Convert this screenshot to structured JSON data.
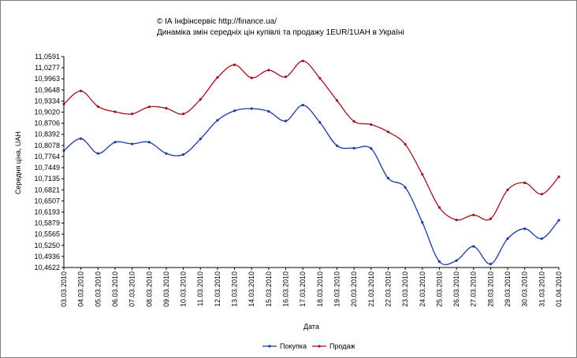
{
  "chart_data": {
    "type": "line",
    "title": "© ІА Інфінсервіс http://finance.ua/",
    "subtitle": "Динаміка змін середніх цін купівлі та продажу 1EUR/1UAH в Україні",
    "xlabel": "Дата",
    "ylabel": "Середня ціна, UAH",
    "ylim": [
      10.4622,
      11.0591
    ],
    "y_ticks": [
      "11,0591",
      "11,0277",
      "10,9963",
      "10,9648",
      "10,9334",
      "10,9020",
      "10,8706",
      "10,8392",
      "10,8078",
      "10,7764",
      "10,7449",
      "10,7135",
      "10,6821",
      "10,6507",
      "10,6193",
      "10,5879",
      "10,5565",
      "10,5250",
      "10,4936",
      "10,4622"
    ],
    "categories": [
      "03.03.2010",
      "04.03.2010",
      "05.03.2010",
      "06.03.2010",
      "07.03.2010",
      "08.03.2010",
      "09.03.2010",
      "10.03.2010",
      "11.03.2010",
      "12.03.2010",
      "13.03.2010",
      "14.03.2010",
      "15.03.2010",
      "16.03.2010",
      "17.03.2010",
      "18.03.2010",
      "19.03.2010",
      "20.03.2010",
      "21.03.2010",
      "22.03.2010",
      "23.03.2010",
      "24.03.2010",
      "25.03.2010",
      "26.03.2010",
      "27.03.2010",
      "28.03.2010",
      "29.03.2010",
      "30.03.2010",
      "31.03.2010",
      "01.04.2010"
    ],
    "series": [
      {
        "name": "Покупка",
        "color": "#1a3a9a",
        "values": [
          10.793,
          10.827,
          10.785,
          10.817,
          10.812,
          10.817,
          10.785,
          10.782,
          10.826,
          10.879,
          10.906,
          10.912,
          10.904,
          10.877,
          10.922,
          10.873,
          10.807,
          10.8,
          10.799,
          10.715,
          10.689,
          10.59,
          10.479,
          10.482,
          10.522,
          10.472,
          10.544,
          10.572,
          10.544,
          10.596
        ]
      },
      {
        "name": "Продаж",
        "color": "#a01020",
        "values": [
          10.925,
          10.962,
          10.918,
          10.903,
          10.897,
          10.917,
          10.913,
          10.897,
          10.938,
          11.0,
          11.036,
          10.999,
          11.021,
          11.002,
          11.047,
          10.998,
          10.935,
          10.876,
          10.867,
          10.846,
          10.811,
          10.726,
          10.632,
          10.597,
          10.611,
          10.6,
          10.682,
          10.702,
          10.67,
          10.719
        ]
      }
    ],
    "grid": false,
    "legend_position": "bottom-center"
  }
}
